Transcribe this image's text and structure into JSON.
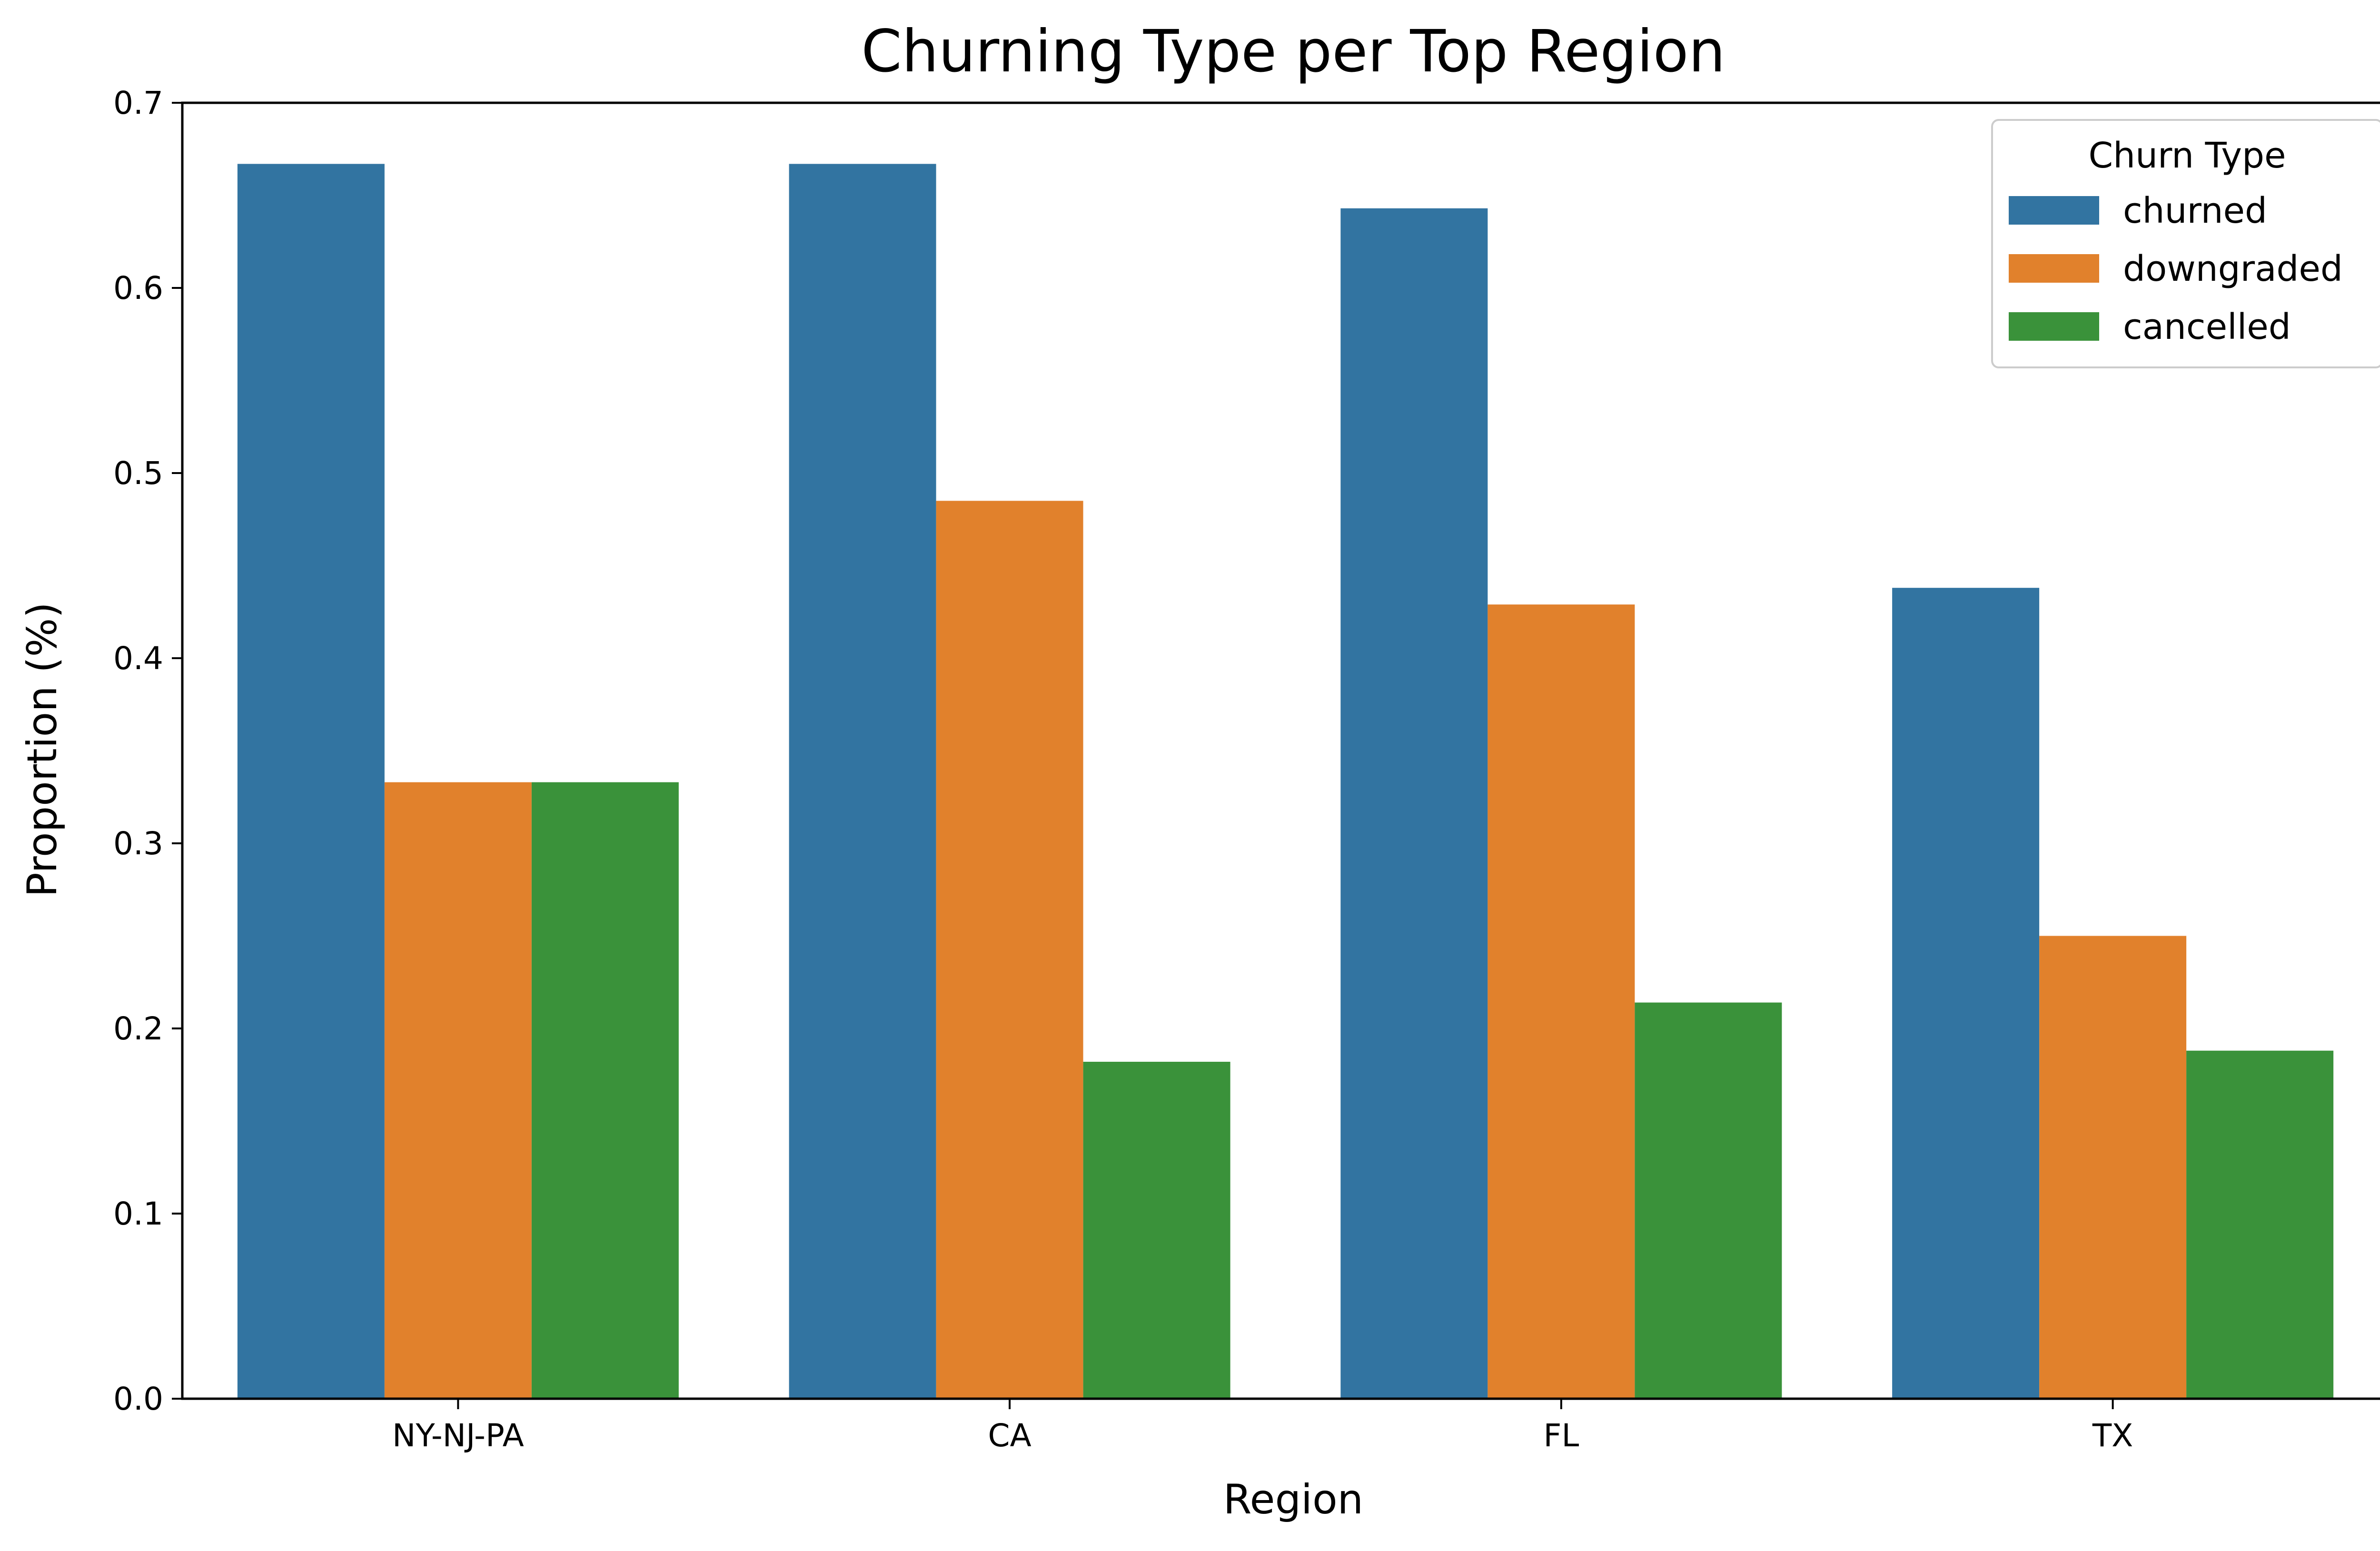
{
  "chart_data": {
    "type": "bar",
    "title": "Churning Type per Top Region",
    "xlabel": "Region",
    "ylabel": "Proportion (%)",
    "categories": [
      "NY-NJ-PA",
      "CA",
      "FL",
      "TX"
    ],
    "series": [
      {
        "name": "churned",
        "color": "#3274a1",
        "values": [
          0.667,
          0.667,
          0.643,
          0.438
        ]
      },
      {
        "name": "downgraded",
        "color": "#e1812c",
        "values": [
          0.333,
          0.485,
          0.429,
          0.25
        ]
      },
      {
        "name": "cancelled",
        "color": "#3a923a",
        "values": [
          0.333,
          0.182,
          0.214,
          0.188
        ]
      }
    ],
    "ylim": [
      0,
      0.7
    ],
    "yticks": [
      "0.0",
      "0.1",
      "0.2",
      "0.3",
      "0.4",
      "0.5",
      "0.6",
      "0.7"
    ],
    "ytick_values": [
      0,
      0.1,
      0.2,
      0.3,
      0.4,
      0.5,
      0.6,
      0.7
    ],
    "legend": {
      "title": "Churn Type",
      "placement": "top-right"
    },
    "grid": false
  }
}
